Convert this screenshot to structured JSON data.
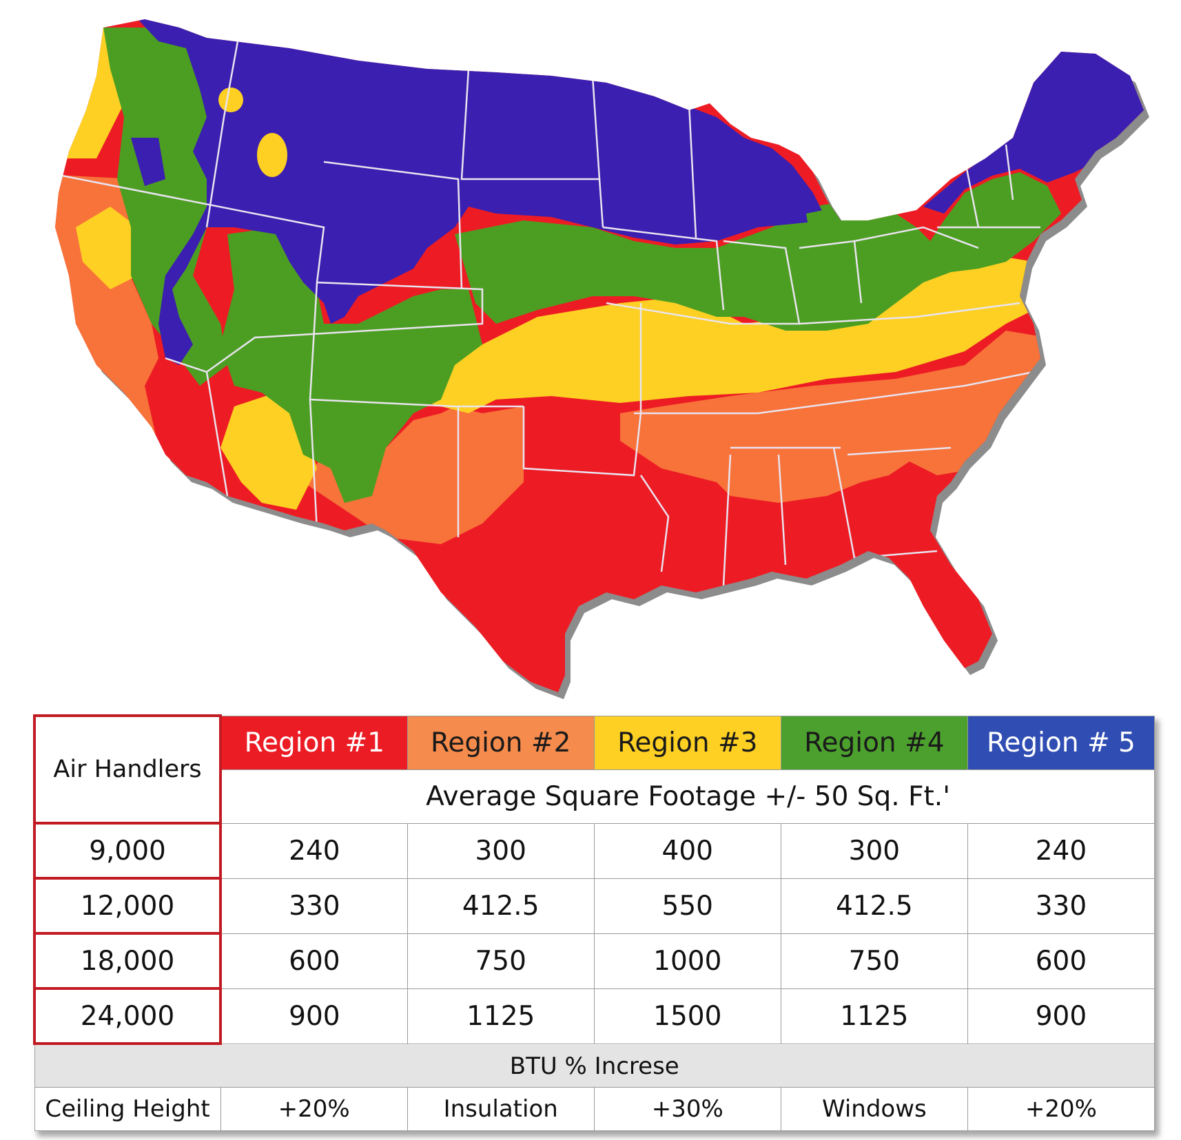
{
  "map": {
    "region_colors": {
      "region_1": "#ed1c24",
      "region_2": "#f7733a",
      "region_3": "#fdd023",
      "region_4": "#4c9e22",
      "region_5": "#3b1fb0"
    },
    "state_line_color": "#e9e4f0",
    "shadow_color": "#8c8c8c"
  },
  "table": {
    "corner_label": "Air Handlers",
    "subheader": "Average Square Footage +/- 50 Sq. Ft.'",
    "regions": [
      {
        "label": "Region #1",
        "color": "#ec1c24",
        "text_color": "#ffffff"
      },
      {
        "label": "Region #2",
        "color": "#f58b4c",
        "text_color": "#1a1a1a"
      },
      {
        "label": "Region #3",
        "color": "#fdd023",
        "text_color": "#1a1a1a"
      },
      {
        "label": "Region #4",
        "color": "#4ca02e",
        "text_color": "#1a1a1a"
      },
      {
        "label": "Region # 5",
        "color": "#2f4db3",
        "text_color": "#ffffff"
      }
    ],
    "rows": [
      {
        "btu": "9,000",
        "values": [
          "240",
          "300",
          "400",
          "300",
          "240"
        ]
      },
      {
        "btu": "12,000",
        "values": [
          "330",
          "412.5",
          "550",
          "412.5",
          "330"
        ]
      },
      {
        "btu": "18,000",
        "values": [
          "600",
          "750",
          "1000",
          "750",
          "600"
        ]
      },
      {
        "btu": "24,000",
        "values": [
          "900",
          "1125",
          "1500",
          "1125",
          "900"
        ]
      }
    ],
    "btu_increase_label": "BTU % Increse",
    "adjustments": [
      "Ceiling Height",
      "+20%",
      "Insulation",
      "+30%",
      "Windows",
      "+20%"
    ]
  }
}
